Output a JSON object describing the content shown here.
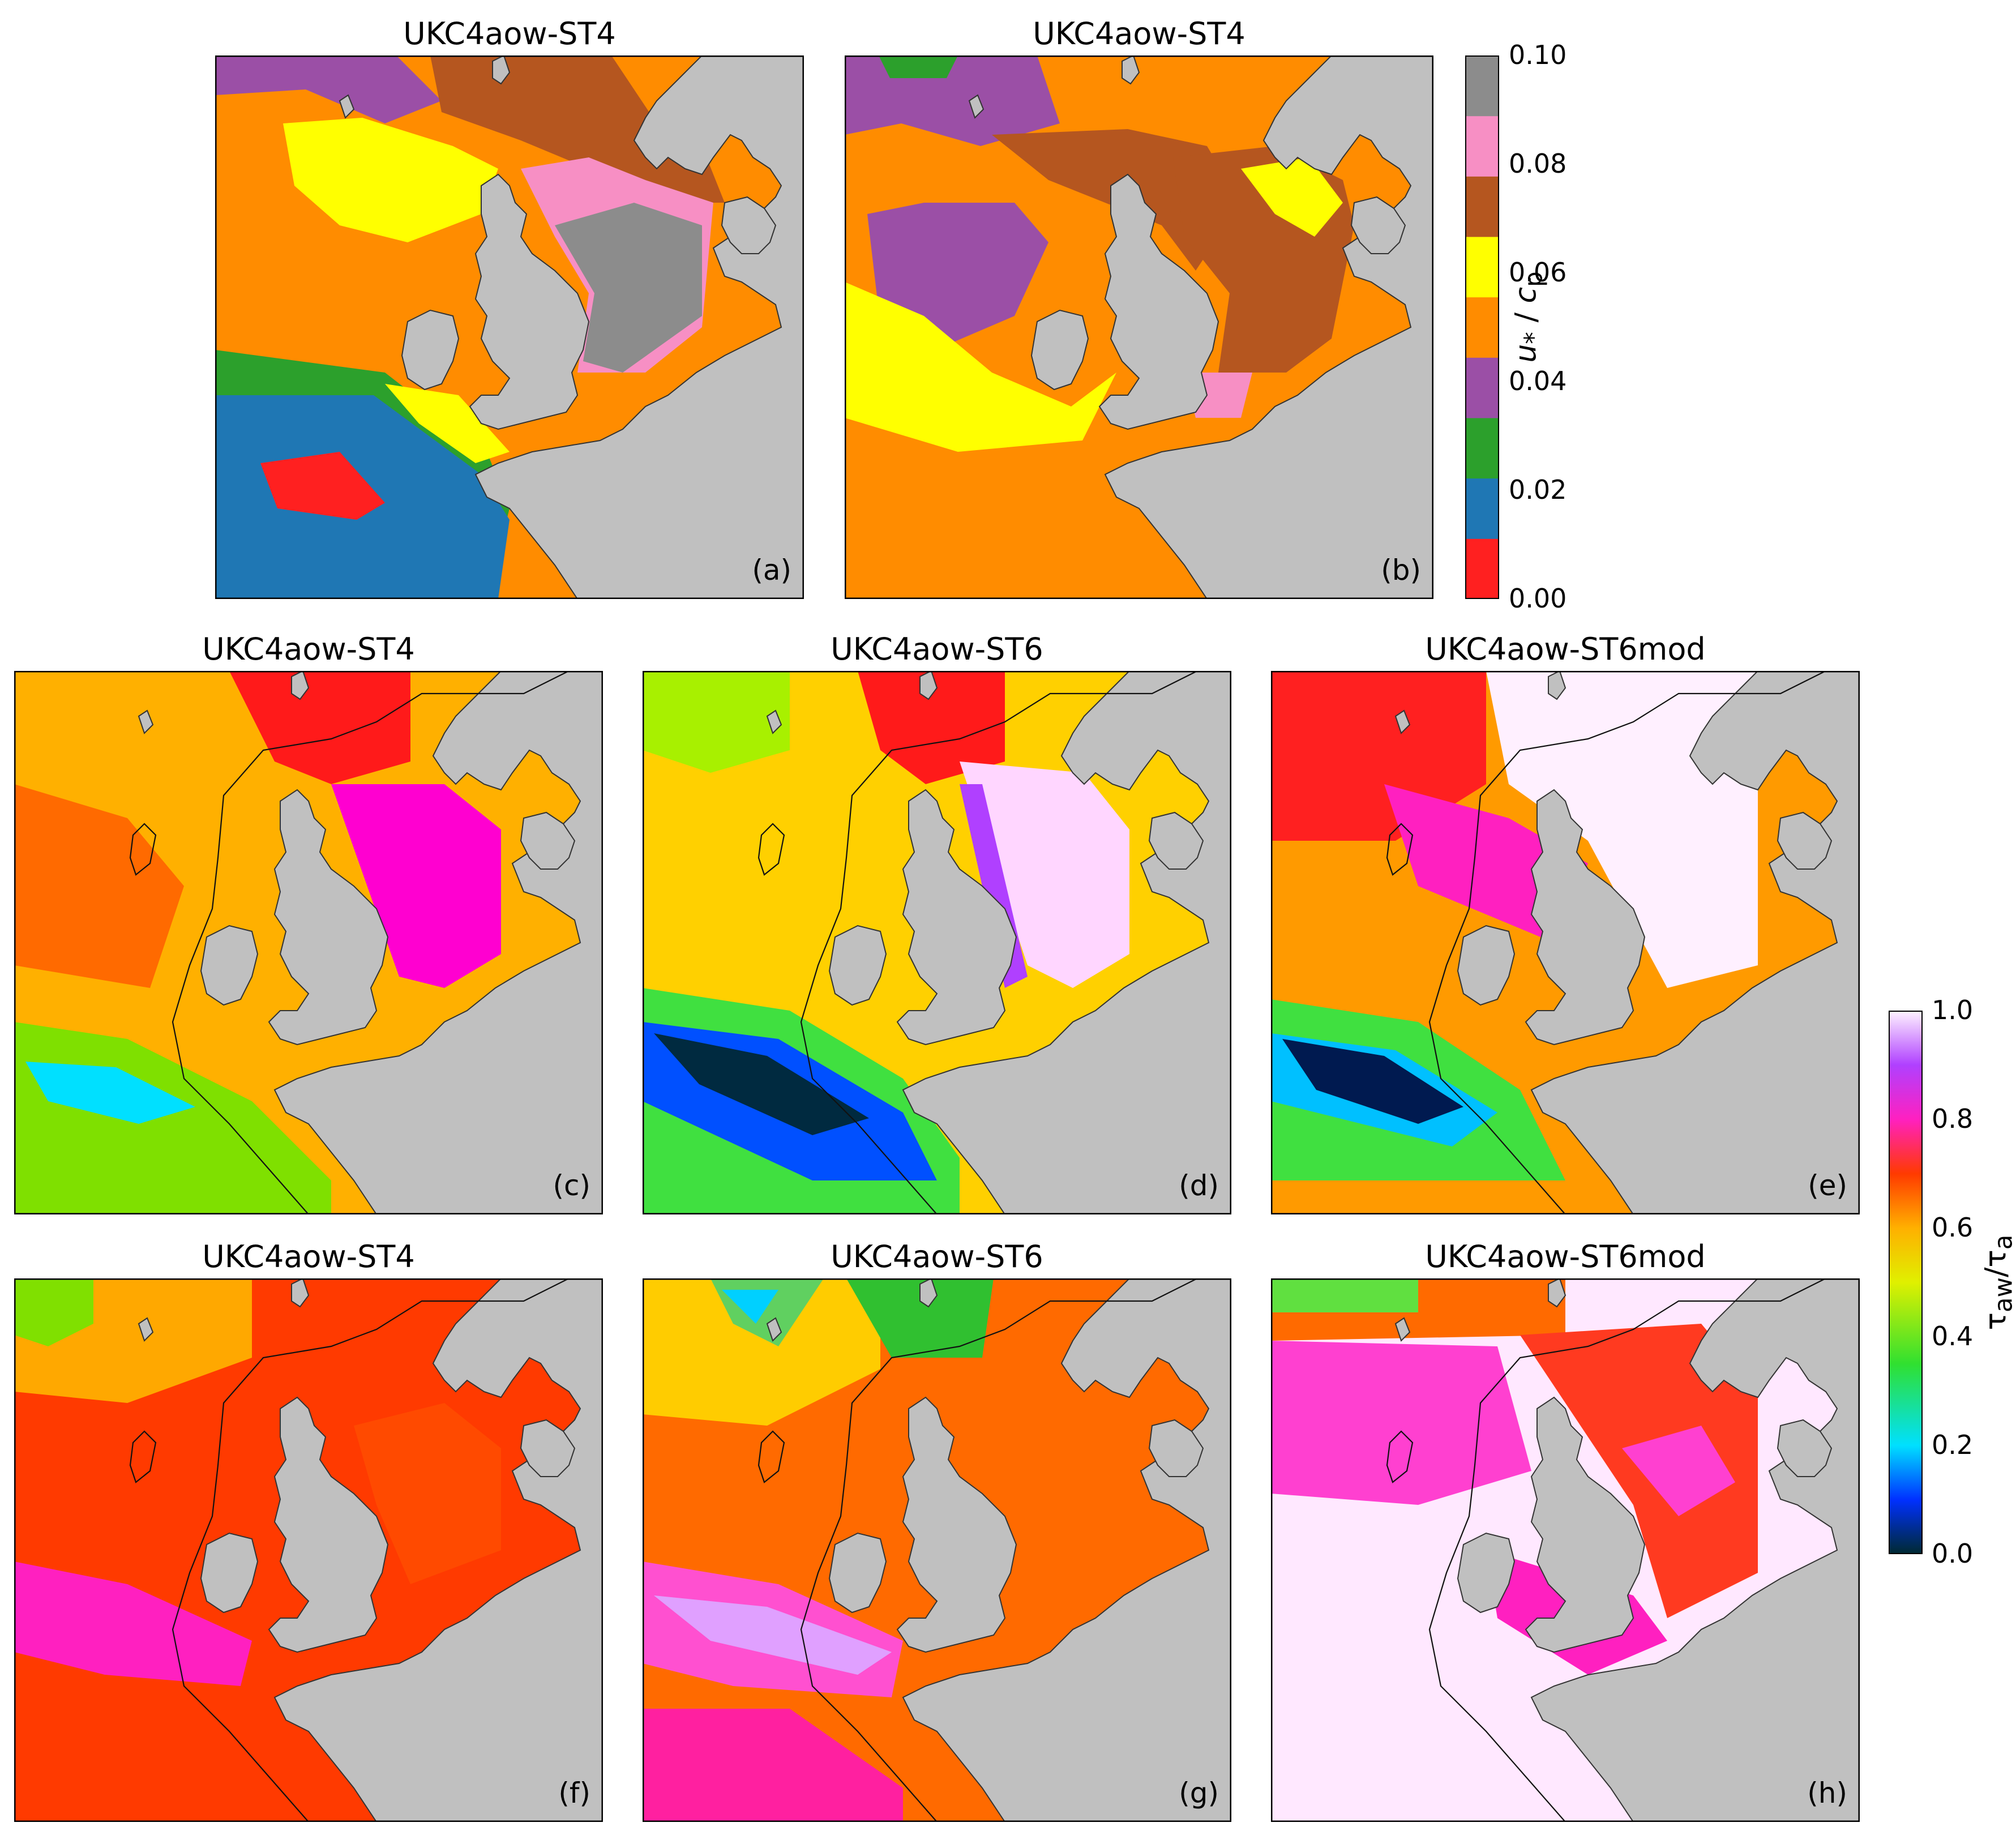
{
  "panels": [
    {
      "id": "a",
      "title": "UKC4aow-ST4",
      "label": "(a)",
      "palette": "discrete",
      "scheme": "a"
    },
    {
      "id": "b",
      "title": "UKC4aow-ST4",
      "label": "(b)",
      "palette": "discrete",
      "scheme": "b"
    },
    {
      "id": "c",
      "title": "UKC4aow-ST4",
      "label": "(c)",
      "palette": "continuous",
      "scheme": "c"
    },
    {
      "id": "d",
      "title": "UKC4aow-ST6",
      "label": "(d)",
      "palette": "continuous",
      "scheme": "d"
    },
    {
      "id": "e",
      "title": "UKC4aow-ST6mod",
      "label": "(e)",
      "palette": "continuous",
      "scheme": "e"
    },
    {
      "id": "f",
      "title": "UKC4aow-ST4",
      "label": "(f)",
      "palette": "continuous",
      "scheme": "f"
    },
    {
      "id": "g",
      "title": "UKC4aow-ST6",
      "label": "(g)",
      "palette": "continuous",
      "scheme": "g"
    },
    {
      "id": "h",
      "title": "UKC4aow-ST6mod",
      "label": "(h)",
      "palette": "continuous",
      "scheme": "h"
    }
  ],
  "colorbar_discrete": {
    "ticks": [
      "0.00",
      "0.02",
      "0.04",
      "0.06",
      "0.08",
      "0.10"
    ],
    "colors": [
      "#ff2020",
      "#1f77b4",
      "#2ca02c",
      "#9b4fa6",
      "#ff8c00",
      "#ffff00",
      "#b5561f",
      "#f78fc4",
      "#8c8c8c"
    ],
    "label": "u* / cp"
  },
  "colorbar_continuous": {
    "ticks": [
      "0.0",
      "0.2",
      "0.4",
      "0.6",
      "0.8",
      "1.0"
    ],
    "label": "τaw/τa"
  },
  "colors": {
    "land": "#c0c0c0",
    "frame": "#000000"
  }
}
